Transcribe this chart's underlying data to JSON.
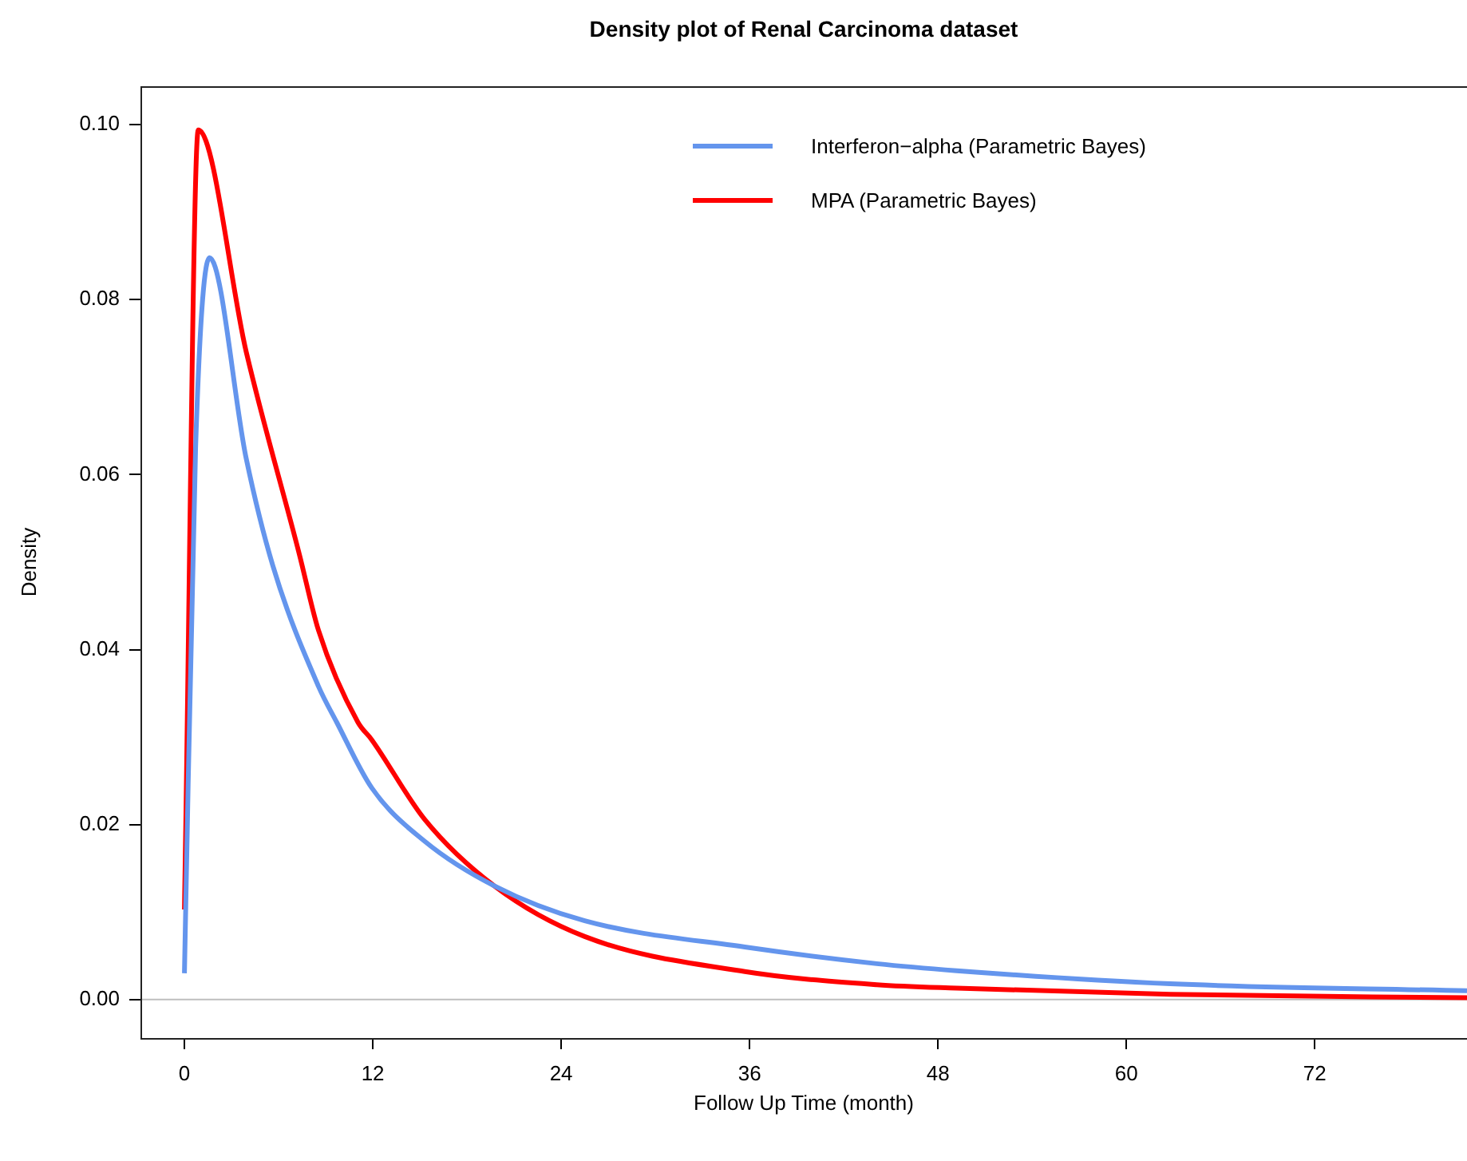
{
  "chart_data": {
    "type": "line",
    "title": "Density plot of Renal Carcinoma dataset",
    "xlabel": "Follow Up Time (month)",
    "ylabel": "Density",
    "xlim": [
      -2.8,
      81.7
    ],
    "xticks": [
      0,
      12,
      24,
      36,
      48,
      60,
      72
    ],
    "ylim": [
      -0.0044,
      0.1044
    ],
    "yticks": [
      {
        "value": 0,
        "label": "0.00"
      },
      {
        "value": 0.02,
        "label": "0.02"
      },
      {
        "value": 0.04,
        "label": "0.04"
      },
      {
        "value": 0.06,
        "label": "0.06"
      },
      {
        "value": 0.08,
        "label": "0.08"
      },
      {
        "value": 0.1,
        "label": "0.10"
      }
    ],
    "grid": false,
    "legend": "top right",
    "marker": "none",
    "line_style": "solid",
    "ref_lines": [
      {
        "axis": "y",
        "value": 0,
        "color": "#bebebe"
      }
    ],
    "series": [
      {
        "name": "Interferon−alpha (Parametric Bayes)",
        "color": "#6495ed",
        "x": [
          0,
          0.71,
          1.6,
          3.94,
          5.63,
          8.54,
          9.7,
          11.93,
          15.3,
          19.73,
          25.5,
          35.7,
          44.1,
          49.2,
          62.8,
          81.7
        ],
        "values": [
          0.003,
          0.063,
          0.0848,
          0.0618,
          0.0496,
          0.0358,
          0.0317,
          0.0242,
          0.0181,
          0.013,
          0.009,
          0.006,
          0.0041,
          0.0033,
          0.0018,
          0.001
        ]
      },
      {
        "name": "MPA (Parametric Bayes)",
        "color": "#ff0000",
        "x": [
          0,
          0.88,
          3.94,
          7.32,
          8.54,
          11.05,
          11.93,
          15.3,
          19.73,
          25.5,
          35.7,
          44.1,
          49.2,
          62.8,
          81.7
        ],
        "values": [
          0.0103,
          0.0994,
          0.074,
          0.0509,
          0.0422,
          0.0317,
          0.0297,
          0.0206,
          0.013,
          0.0072,
          0.0032,
          0.0017,
          0.0013,
          0.0006,
          0.0002
        ]
      }
    ]
  }
}
